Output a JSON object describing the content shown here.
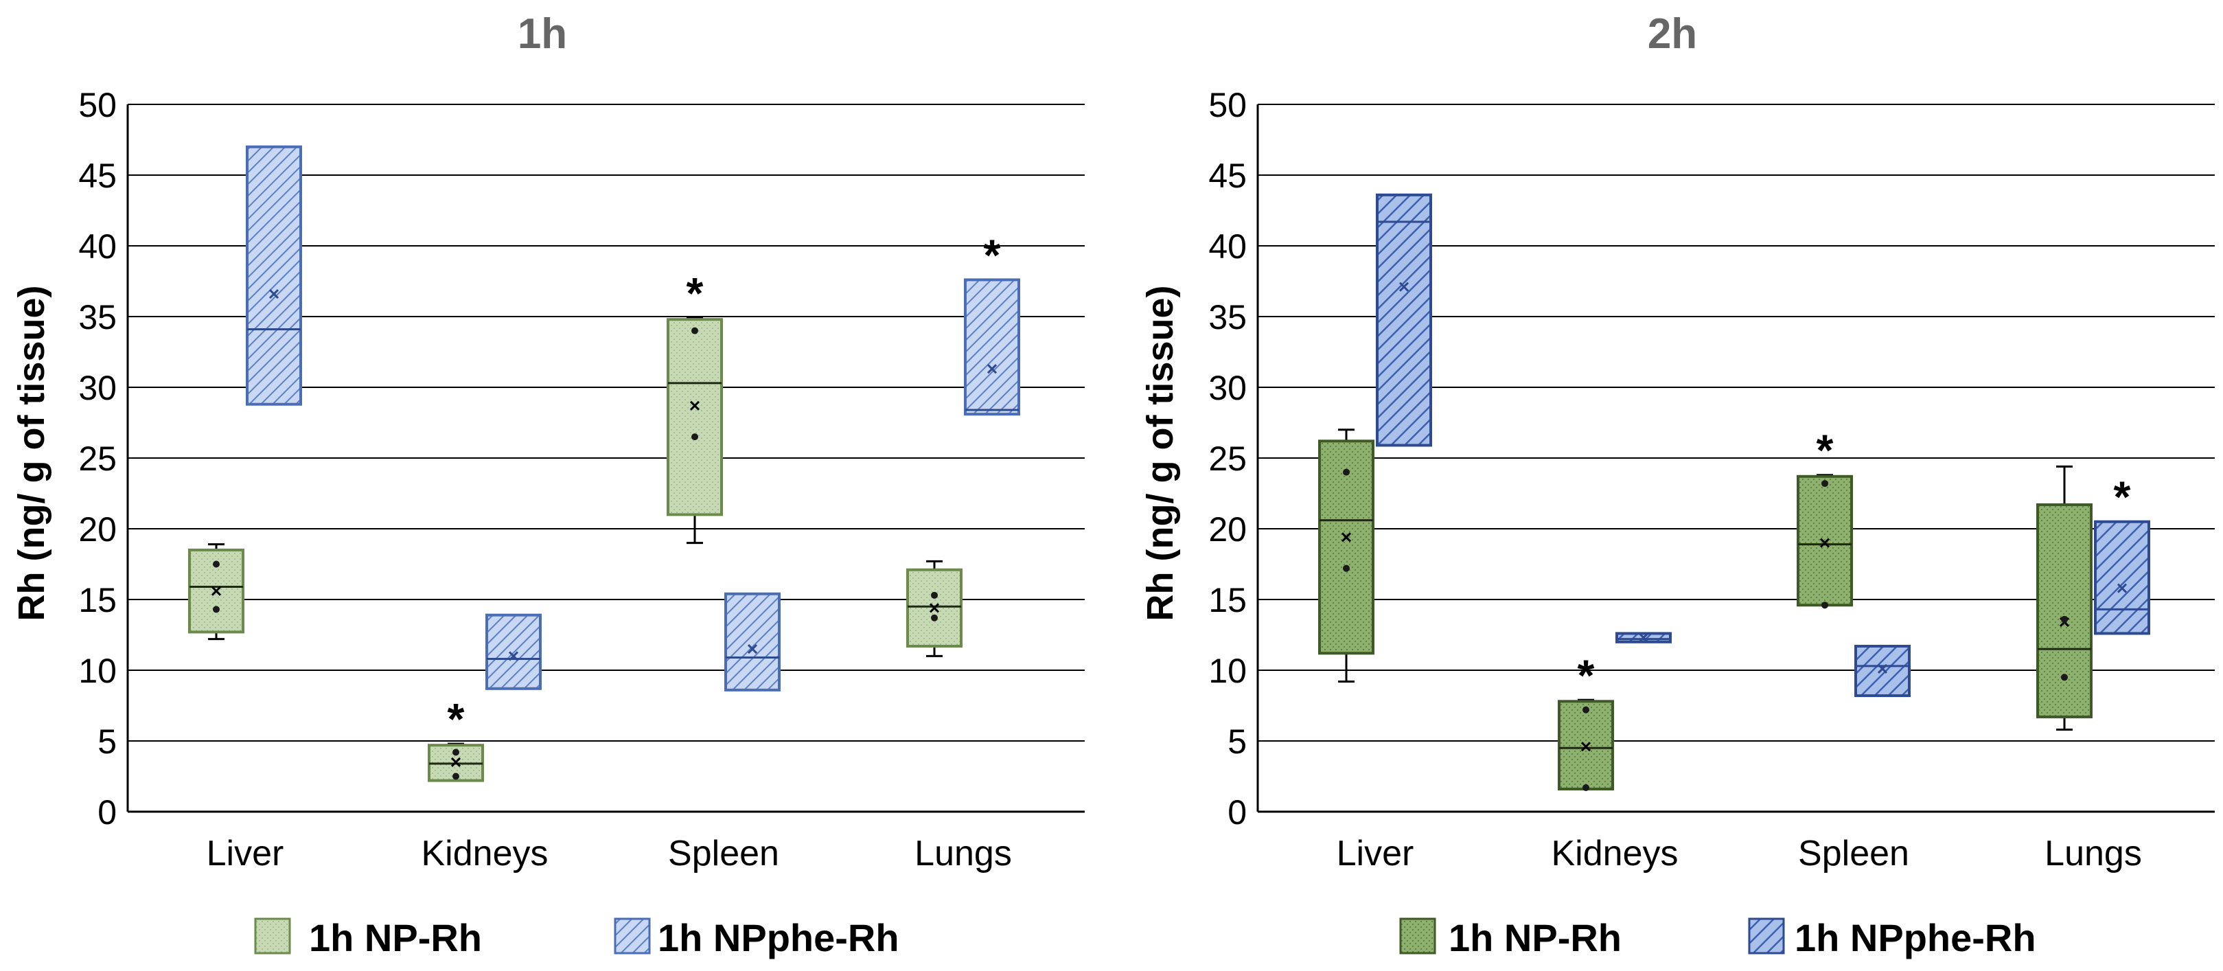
{
  "colors": {
    "np_fill_1": "#c6d9b4",
    "np_stroke_1": "#6c8a4c",
    "np_fill_2": "#8fb16f",
    "np_stroke_2": "#3f5a27",
    "phe_fill": "#b9cdef",
    "phe_line_1": "#5b7fc8",
    "phe_stroke_1": "#4a6db5",
    "phe_line_2": "#3d5fb0",
    "phe_stroke_2": "#2e4a90",
    "grid": "#000000",
    "title": "#666666"
  },
  "chart_data": [
    {
      "type": "box",
      "title": "1h",
      "ylabel": "Rh (ng/ g of tissue)",
      "xlabel": "",
      "ylim": [
        0,
        50
      ],
      "yticks": [
        "0",
        "5",
        "10",
        "15",
        "20",
        "25",
        "30",
        "35",
        "40",
        "45",
        "50"
      ],
      "categories": [
        "Liver",
        "Kidneys",
        "Spleen",
        "Lungs"
      ],
      "legend": [
        "1h NP-Rh",
        "1h NPphe-Rh"
      ],
      "series": [
        {
          "name": "1h NP-Rh",
          "boxes": [
            {
              "category": "Liver",
              "min": 12.2,
              "q1": 12.7,
              "median": 15.9,
              "q3": 18.5,
              "max": 18.9,
              "mean": 15.6,
              "points": [
                17.5,
                14.3
              ],
              "sig": false
            },
            {
              "category": "Kidneys",
              "min": 2.2,
              "q1": 2.2,
              "median": 3.4,
              "q3": 4.7,
              "max": 4.8,
              "mean": 3.5,
              "points": [
                4.2,
                2.5
              ],
              "sig": true
            },
            {
              "category": "Spleen",
              "min": 19.0,
              "q1": 21.0,
              "median": 30.3,
              "q3": 34.8,
              "max": 34.9,
              "mean": 28.7,
              "points": [
                34.0,
                26.5
              ],
              "sig": true
            },
            {
              "category": "Lungs",
              "min": 11.0,
              "q1": 11.7,
              "median": 14.5,
              "q3": 17.1,
              "max": 17.7,
              "mean": 14.4,
              "points": [
                15.3,
                13.7
              ],
              "sig": false
            }
          ]
        },
        {
          "name": "1h NPphe-Rh",
          "boxes": [
            {
              "category": "Liver",
              "min": 28.8,
              "q1": 28.8,
              "median": 34.1,
              "q3": 47.0,
              "max": 47.0,
              "mean": 36.6,
              "points": [],
              "sig": false
            },
            {
              "category": "Kidneys",
              "min": 8.7,
              "q1": 8.7,
              "median": 10.8,
              "q3": 13.9,
              "max": 13.9,
              "mean": 11.0,
              "points": [],
              "sig": false
            },
            {
              "category": "Spleen",
              "min": 8.6,
              "q1": 8.6,
              "median": 10.9,
              "q3": 15.4,
              "max": 15.4,
              "mean": 11.5,
              "points": [],
              "sig": false
            },
            {
              "category": "Lungs",
              "min": 28.1,
              "q1": 28.1,
              "median": 28.4,
              "q3": 37.6,
              "max": 37.6,
              "mean": 31.3,
              "points": [],
              "sig": true
            }
          ]
        }
      ]
    },
    {
      "type": "box",
      "title": "2h",
      "ylabel": "Rh (ng/ g of tissue)",
      "xlabel": "",
      "ylim": [
        0,
        50
      ],
      "yticks": [
        "0",
        "5",
        "10",
        "15",
        "20",
        "25",
        "30",
        "35",
        "40",
        "45",
        "50"
      ],
      "categories": [
        "Liver",
        "Kidneys",
        "Spleen",
        "Lungs"
      ],
      "legend": [
        "1h NP-Rh",
        "1h NPphe-Rh"
      ],
      "series": [
        {
          "name": "1h NP-Rh",
          "boxes": [
            {
              "category": "Liver",
              "min": 9.2,
              "q1": 11.2,
              "median": 20.6,
              "q3": 26.2,
              "max": 27.0,
              "mean": 19.4,
              "points": [
                24.0,
                17.2
              ],
              "sig": false
            },
            {
              "category": "Kidneys",
              "min": 1.6,
              "q1": 1.6,
              "median": 4.5,
              "q3": 7.8,
              "max": 7.9,
              "mean": 4.6,
              "points": [
                7.2,
                1.7
              ],
              "sig": true
            },
            {
              "category": "Spleen",
              "min": 14.6,
              "q1": 14.6,
              "median": 18.9,
              "q3": 23.7,
              "max": 23.8,
              "mean": 19.0,
              "points": [
                23.2,
                14.6
              ],
              "sig": true
            },
            {
              "category": "Lungs",
              "min": 5.8,
              "q1": 6.7,
              "median": 11.5,
              "q3": 21.7,
              "max": 24.4,
              "mean": 13.4,
              "points": [
                13.6,
                9.5
              ],
              "sig": false
            }
          ]
        },
        {
          "name": "1h NPphe-Rh",
          "boxes": [
            {
              "category": "Liver",
              "min": 25.9,
              "q1": 25.9,
              "median": 41.7,
              "q3": 43.6,
              "max": 43.6,
              "mean": 37.1,
              "points": [],
              "sig": false
            },
            {
              "category": "Kidneys",
              "min": 12.0,
              "q1": 12.0,
              "median": 12.2,
              "q3": 12.6,
              "max": 12.6,
              "mean": 12.3,
              "points": [],
              "sig": false
            },
            {
              "category": "Spleen",
              "min": 8.2,
              "q1": 8.2,
              "median": 10.3,
              "q3": 11.7,
              "max": 11.7,
              "mean": 10.1,
              "points": [],
              "sig": false
            },
            {
              "category": "Lungs",
              "min": 12.6,
              "q1": 12.6,
              "median": 14.3,
              "q3": 20.5,
              "max": 20.5,
              "mean": 15.8,
              "points": [],
              "sig": true
            }
          ]
        }
      ]
    }
  ]
}
